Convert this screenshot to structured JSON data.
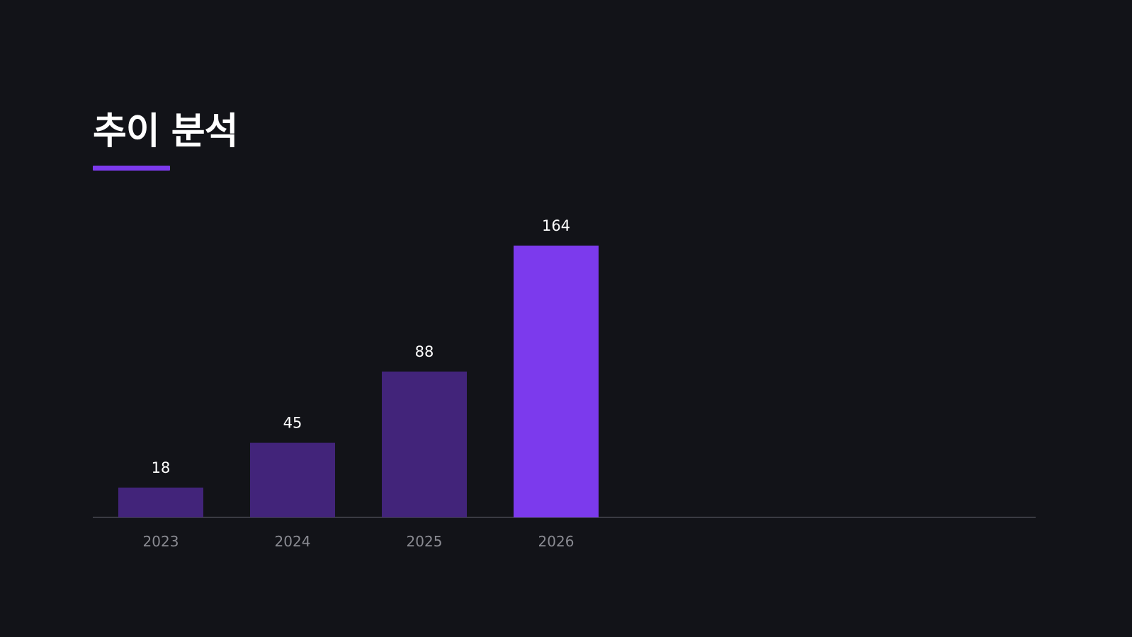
{
  "slide": {
    "title": "추이 분석"
  },
  "colors": {
    "background": "#121318",
    "accent": "#7c3aed",
    "bar_muted": "#42247a",
    "axis": "#3a3b42",
    "value_text": "#ffffff",
    "tick_text": "#8a8b92"
  },
  "chart_data": {
    "type": "bar",
    "categories": [
      "2023",
      "2024",
      "2025",
      "2026"
    ],
    "values": [
      18,
      45,
      88,
      164
    ],
    "highlight_index": 3,
    "title": "",
    "xlabel": "",
    "ylabel": "",
    "ylim": [
      0,
      164
    ],
    "grid": false,
    "legend": "none",
    "data_labels": true
  }
}
